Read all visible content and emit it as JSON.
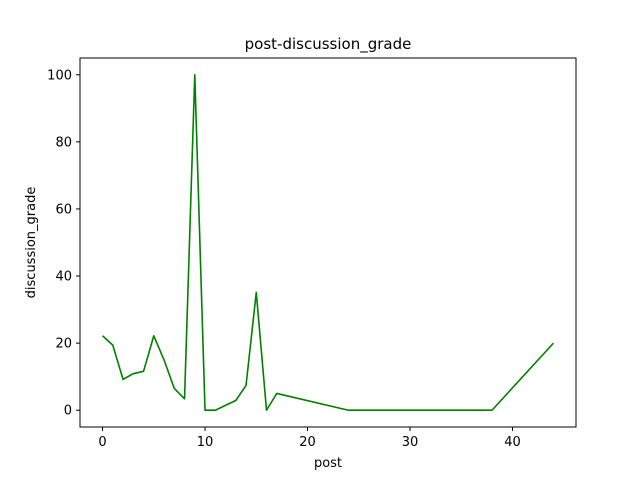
{
  "chart_data": {
    "type": "line",
    "title": "post-discussion_grade",
    "xlabel": "post",
    "ylabel": "discussion_grade",
    "xlim": [
      -2.2,
      46.2
    ],
    "ylim": [
      -5,
      105
    ],
    "x_ticks": [
      0,
      10,
      20,
      30,
      40
    ],
    "y_ticks": [
      0,
      20,
      40,
      60,
      80,
      100
    ],
    "grid": false,
    "series": [
      {
        "color": "#008000",
        "x": [
          0,
          1,
          2,
          3,
          4,
          5,
          6,
          7,
          8,
          9,
          10,
          11,
          13,
          14,
          15,
          16,
          17,
          24,
          38,
          44
        ],
        "y": [
          22.2,
          19.4,
          9.2,
          10.9,
          11.6,
          22.2,
          15,
          6.5,
          3.4,
          100,
          0,
          0,
          2.9,
          7.4,
          35.1,
          0,
          5,
          0,
          0,
          20
        ]
      }
    ]
  }
}
